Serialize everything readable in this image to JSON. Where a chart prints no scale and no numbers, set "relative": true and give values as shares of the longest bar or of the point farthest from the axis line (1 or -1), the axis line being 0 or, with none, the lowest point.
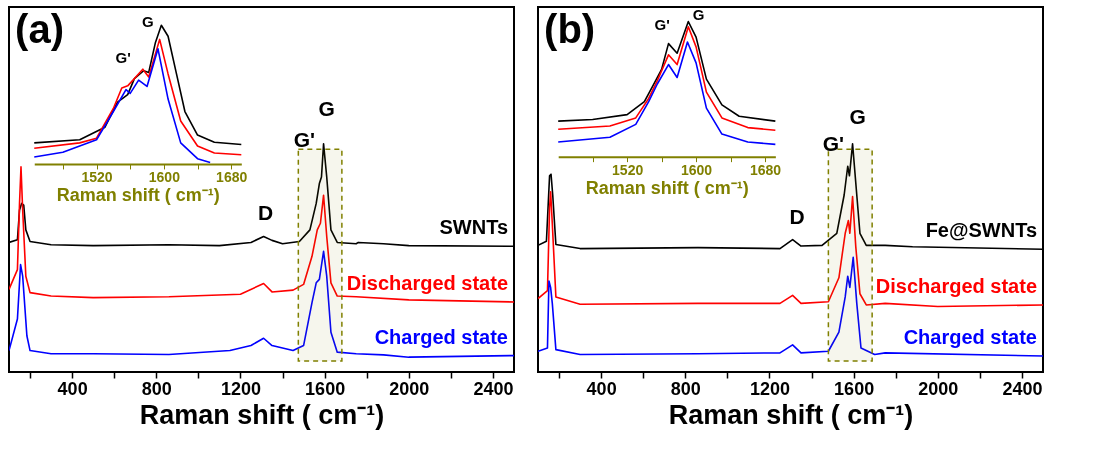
{
  "chart_data": [
    {
      "type": "line",
      "xlabel": "Raman shift ( cm⁻¹)",
      "relative": true,
      "tick_labels": "x",
      "xlim": [
        100,
        2500
      ],
      "xticks": [
        {
          "value": 200,
          "label": null
        },
        400,
        {
          "value": 600,
          "label": null
        },
        800,
        {
          "value": 1000,
          "label": null
        },
        1200,
        {
          "value": 1400,
          "label": null
        },
        1600,
        {
          "value": 1800,
          "label": null
        },
        2000,
        {
          "value": 2200,
          "label": null
        },
        2400
      ],
      "series": [
        {
          "name": "SWNTs",
          "color": "#000000",
          "x": [
            100,
            140,
            150,
            160,
            170,
            180,
            200,
            300,
            500,
            860,
            1100,
            1250,
            1310,
            1350,
            1400,
            1480,
            1530,
            1560,
            1575,
            1585,
            1595,
            1610,
            1630,
            1660,
            1750,
            1760,
            1880,
            2000,
            2500
          ],
          "values": [
            0.568,
            0.58,
            0.71,
            0.739,
            0.732,
            0.623,
            0.572,
            0.558,
            0.554,
            0.558,
            0.554,
            0.568,
            0.594,
            0.577,
            0.562,
            0.572,
            0.623,
            0.739,
            0.826,
            0.855,
            1.0,
            0.855,
            0.623,
            0.568,
            0.562,
            0.568,
            0.562,
            0.554,
            0.551
          ]
        },
        {
          "name": "Discharged state",
          "color": "#ff0000",
          "x": [
            100,
            140,
            150,
            157,
            165,
            180,
            200,
            300,
            500,
            860,
            1200,
            1310,
            1350,
            1450,
            1500,
            1540,
            1565,
            1580,
            1595,
            1610,
            1630,
            1660,
            1750,
            2000,
            2500
          ],
          "values": [
            0.362,
            0.449,
            0.739,
            0.899,
            0.71,
            0.42,
            0.348,
            0.333,
            0.326,
            0.33,
            0.341,
            0.388,
            0.351,
            0.359,
            0.384,
            0.507,
            0.623,
            0.652,
            0.775,
            0.594,
            0.391,
            0.333,
            0.33,
            0.316,
            0.307
          ]
        },
        {
          "name": "Charged state",
          "color": "#0000ff",
          "x": [
            100,
            140,
            155,
            165,
            185,
            200,
            300,
            500,
            860,
            1150,
            1250,
            1310,
            1350,
            1450,
            1500,
            1540,
            1560,
            1575,
            1595,
            1610,
            1630,
            1660,
            1750,
            1880,
            2000,
            2500
          ],
          "values": [
            0.094,
            0.232,
            0.471,
            0.42,
            0.159,
            0.094,
            0.08,
            0.08,
            0.077,
            0.094,
            0.116,
            0.148,
            0.116,
            0.094,
            0.116,
            0.304,
            0.391,
            0.406,
            0.529,
            0.42,
            0.174,
            0.087,
            0.08,
            0.075,
            0.065,
            0.072
          ]
        }
      ],
      "bands": [
        {
          "axis": "x",
          "from": 1475,
          "to": 1682,
          "color": "#808000"
        }
      ],
      "annotations": [
        "(a)",
        "D",
        "G'",
        "G"
      ]
    },
    {
      "type": "line",
      "xlabel": "Raman shift ( cm⁻¹)",
      "relative": true,
      "tick_labels": "x",
      "xlim": [
        1446,
        1692
      ],
      "xticks": [
        {
          "value": 1480,
          "label": null
        },
        1520,
        {
          "value": 1560,
          "label": null
        },
        1600,
        {
          "value": 1640,
          "label": null
        },
        1680
      ],
      "series": [
        {
          "color": "#000000",
          "x": [
            1446,
            1500,
            1530,
            1545,
            1557,
            1565,
            1576,
            1582,
            1590,
            1597,
            1605,
            1615,
            1625,
            1640,
            1660,
            1692
          ],
          "values": [
            0.152,
            0.174,
            0.265,
            0.446,
            0.5,
            0.615,
            0.672,
            0.66,
            0.876,
            1.0,
            0.921,
            0.649,
            0.378,
            0.208,
            0.156,
            0.14
          ]
        },
        {
          "color": "#ff0000",
          "x": [
            1446,
            1500,
            1520,
            1540,
            1550,
            1557,
            1565,
            1575,
            1582,
            1595,
            1605,
            1620,
            1640,
            1660,
            1692
          ],
          "values": [
            0.113,
            0.152,
            0.186,
            0.4,
            0.548,
            0.563,
            0.615,
            0.683,
            0.627,
            0.898,
            0.649,
            0.31,
            0.129,
            0.079,
            0.066
          ]
        },
        {
          "color": "#0000ff",
          "x": [
            1446,
            1480,
            1520,
            1540,
            1555,
            1560,
            1570,
            1580,
            1593,
            1605,
            1620,
            1640,
            1655
          ],
          "values": [
            0.05,
            0.084,
            0.174,
            0.378,
            0.536,
            0.509,
            0.604,
            0.559,
            0.83,
            0.468,
            0.152,
            0.038,
            0.01
          ]
        }
      ],
      "annotations": [
        "G'",
        "G"
      ]
    },
    {
      "type": "line",
      "xlabel": "Raman shift ( cm⁻¹)",
      "relative": true,
      "tick_labels": "x",
      "xlim": [
        100,
        2500
      ],
      "xticks": [
        {
          "value": 200,
          "label": null
        },
        400,
        {
          "value": 600,
          "label": null
        },
        800,
        {
          "value": 1000,
          "label": null
        },
        1200,
        {
          "value": 1400,
          "label": null
        },
        1600,
        {
          "value": 1800,
          "label": null
        },
        2000,
        {
          "value": 2200,
          "label": null
        },
        2400
      ],
      "series": [
        {
          "name": "Fe@SWNTs",
          "color": "#000000",
          "x": [
            100,
            140,
            155,
            162,
            170,
            185,
            300,
            860,
            1250,
            1310,
            1350,
            1450,
            1520,
            1555,
            1572,
            1580,
            1595,
            1610,
            1630,
            1660,
            1750,
            1880,
            2500
          ],
          "values": [
            0.555,
            0.573,
            0.86,
            0.867,
            0.776,
            0.559,
            0.541,
            0.545,
            0.541,
            0.58,
            0.552,
            0.555,
            0.608,
            0.776,
            0.902,
            0.86,
            1.0,
            0.832,
            0.608,
            0.555,
            0.555,
            0.549,
            0.538
          ]
        },
        {
          "name": "Discharged state",
          "color": "#ff0000",
          "x": [
            100,
            145,
            155,
            160,
            168,
            185,
            300,
            860,
            1250,
            1310,
            1350,
            1480,
            1530,
            1560,
            1575,
            1582,
            1595,
            1610,
            1630,
            1660,
            1750,
            2000,
            2500
          ],
          "values": [
            0.322,
            0.357,
            0.72,
            0.79,
            0.65,
            0.329,
            0.297,
            0.301,
            0.301,
            0.336,
            0.301,
            0.308,
            0.413,
            0.608,
            0.664,
            0.608,
            0.769,
            0.552,
            0.343,
            0.294,
            0.301,
            0.287,
            0.294
          ]
        },
        {
          "name": "Charged state",
          "color": "#0000ff",
          "x": [
            100,
            145,
            152,
            160,
            168,
            185,
            300,
            860,
            1250,
            1310,
            1350,
            1480,
            1530,
            1560,
            1572,
            1582,
            1598,
            1615,
            1635,
            1700,
            1750,
            2500
          ],
          "values": [
            0.091,
            0.105,
            0.399,
            0.371,
            0.301,
            0.098,
            0.077,
            0.08,
            0.084,
            0.119,
            0.084,
            0.091,
            0.175,
            0.329,
            0.42,
            0.371,
            0.503,
            0.301,
            0.105,
            0.077,
            0.084,
            0.07
          ]
        }
      ],
      "bands": [
        {
          "axis": "x",
          "from": 1480,
          "to": 1688,
          "color": "#808000"
        }
      ],
      "annotations": [
        "(b)",
        "D",
        "G'",
        "G"
      ]
    },
    {
      "type": "line",
      "xlabel": "Raman shift ( cm⁻¹)",
      "relative": true,
      "tick_labels": "x",
      "xlim": [
        1440,
        1692
      ],
      "xticks": [
        {
          "value": 1480,
          "label": null
        },
        1520,
        {
          "value": 1560,
          "label": null
        },
        1600,
        {
          "value": 1640,
          "label": null
        },
        1680
      ],
      "series": [
        {
          "color": "#000000",
          "x": [
            1440,
            1480,
            1520,
            1540,
            1552,
            1560,
            1568,
            1578,
            1591,
            1600,
            1612,
            1630,
            1650,
            1692
          ],
          "values": [
            0.263,
            0.275,
            0.311,
            0.407,
            0.55,
            0.646,
            0.837,
            0.766,
            1.0,
            0.885,
            0.574,
            0.383,
            0.299,
            0.263
          ]
        },
        {
          "color": "#ff0000",
          "x": [
            1440,
            1500,
            1530,
            1545,
            1555,
            1568,
            1578,
            1591,
            1600,
            1612,
            1630,
            1660,
            1692
          ],
          "values": [
            0.203,
            0.227,
            0.287,
            0.431,
            0.562,
            0.754,
            0.682,
            0.962,
            0.813,
            0.478,
            0.287,
            0.215,
            0.196
          ]
        },
        {
          "color": "#0000ff",
          "x": [
            1440,
            1500,
            1530,
            1545,
            1555,
            1568,
            1578,
            1590,
            1600,
            1612,
            1630,
            1660,
            1692
          ],
          "values": [
            0.108,
            0.144,
            0.239,
            0.407,
            0.538,
            0.682,
            0.586,
            0.849,
            0.694,
            0.359,
            0.167,
            0.108,
            0.091
          ]
        }
      ],
      "annotations": [
        "G'",
        "G"
      ]
    }
  ]
}
